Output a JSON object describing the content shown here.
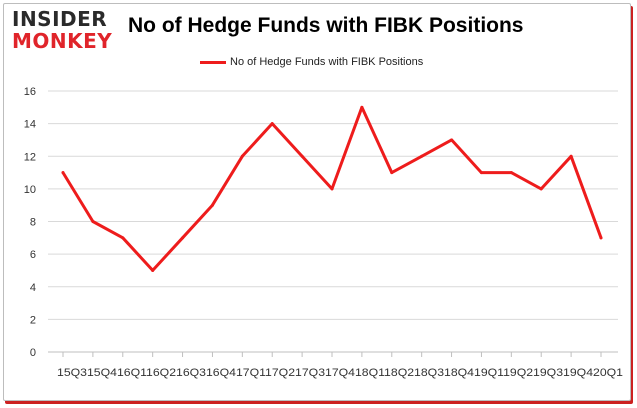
{
  "brand": {
    "line1": "INSIDER",
    "line2": "MONKEY"
  },
  "colors": {
    "series": "#ee1c1c",
    "grid": "#d9d9d9",
    "brand_red": "#e0242a"
  },
  "chart_data": {
    "type": "line",
    "title": "No of Hedge Funds with FIBK Positions",
    "xlabel": "",
    "ylabel": "",
    "legend_position": "top-center",
    "grid": true,
    "ylim": [
      0,
      16
    ],
    "yticks": [
      0,
      2,
      4,
      6,
      8,
      10,
      12,
      14,
      16
    ],
    "x_tick_text": "15Q315Q416Q116Q216Q316Q417Q117Q217Q317Q418Q118Q218Q318Q419Q119Q219Q319Q420Q1",
    "categories": [
      "15Q3",
      "15Q4",
      "16Q1",
      "16Q2",
      "16Q3",
      "16Q4",
      "17Q1",
      "17Q2",
      "17Q3",
      "17Q4",
      "18Q1",
      "18Q2",
      "18Q3",
      "18Q4",
      "19Q1",
      "19Q2",
      "19Q3",
      "19Q4",
      "20Q1"
    ],
    "series": [
      {
        "name": "No of Hedge Funds with FIBK Positions",
        "values": [
          11,
          8,
          7,
          5,
          7,
          9,
          12,
          14,
          12,
          10,
          15,
          11,
          12,
          13,
          11,
          11,
          10,
          12,
          7
        ]
      }
    ]
  }
}
